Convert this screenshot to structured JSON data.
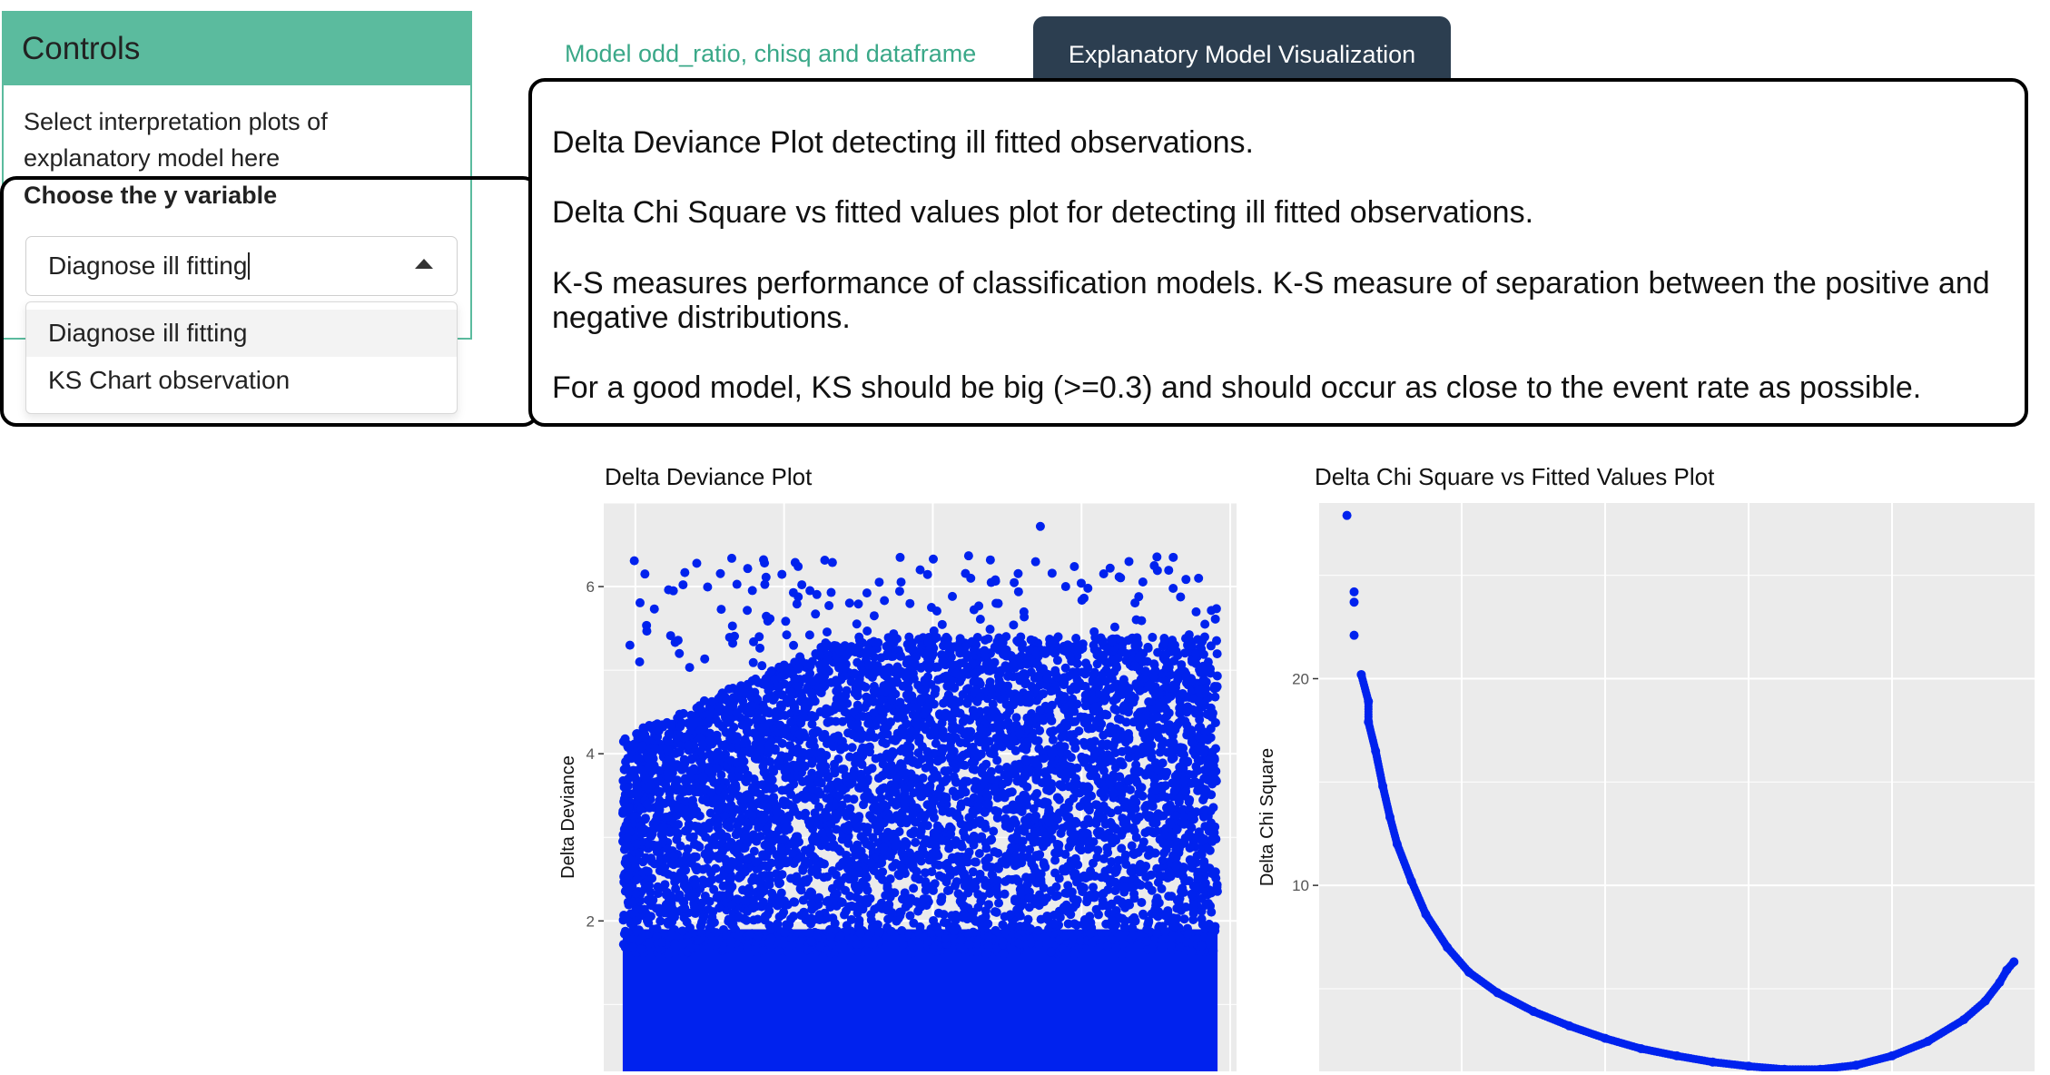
{
  "sidebar": {
    "title": "Controls",
    "description": "Select interpretation plots of explanatory model here",
    "select_label": "Choose the y variable",
    "select_value": "Diagnose ill fitting",
    "options": [
      "Diagnose ill fitting",
      "KS Chart observation"
    ]
  },
  "tabs": [
    {
      "label": "Model odd_ratio, chisq and dataframe",
      "active": false
    },
    {
      "label": "Explanatory Model Visualization",
      "active": true
    }
  ],
  "descriptions": [
    "Delta Deviance Plot detecting ill fitted observations.",
    "Delta Chi Square vs fitted values plot for detecting ill fitted observations.",
    "K-S measures performance of classification models. K-S measure of separation between the positive and negative distributions.",
    "For a good model, KS should be big (>=0.3) and should occur as close to the event rate as possible."
  ],
  "colors": {
    "accent": "#5bbb9e",
    "tab_active": "#2c3e50",
    "tab_inactive_text": "#3aa888",
    "point": "#0022ee",
    "plot_bg": "#ebebeb"
  },
  "chart_data": [
    {
      "type": "scatter",
      "title": "Delta Deviance Plot",
      "xlabel": "",
      "ylabel": "Delta Deviance",
      "ylim": [
        0.2,
        7.0
      ],
      "yticks": [
        2,
        4,
        6
      ],
      "y_tick_labels": [
        "2",
        "4",
        "6"
      ],
      "point_color": "#0022ee",
      "note": "dense band of points from ~0.2 up to ~5.3 across entire x range, sparse points up to ~6.7",
      "sample_points": [
        [
          0.11,
          5.95
        ],
        [
          0.18,
          4.5
        ],
        [
          0.19,
          3.5
        ],
        [
          0.35,
          5.0
        ],
        [
          0.5,
          6.2
        ],
        [
          0.58,
          6.1
        ],
        [
          0.62,
          5.8
        ],
        [
          0.69,
          6.72
        ],
        [
          0.73,
          6.0
        ],
        [
          0.83,
          6.3
        ],
        [
          0.87,
          6.25
        ],
        [
          0.9,
          6.35
        ],
        [
          0.94,
          6.1
        ],
        [
          0.95,
          5.55
        ]
      ]
    },
    {
      "type": "scatter",
      "title": "Delta Chi Square vs Fitted Values Plot",
      "xlabel": "",
      "ylabel": "Delta Chi Square",
      "ylim": [
        1,
        28.5
      ],
      "yticks": [
        10,
        20
      ],
      "y_tick_labels": [
        "10",
        "20"
      ],
      "point_color": "#0022ee",
      "points": [
        [
          0.04,
          27.9
        ],
        [
          0.05,
          24.2
        ],
        [
          0.05,
          23.7
        ],
        [
          0.05,
          22.1
        ],
        [
          0.06,
          20.2
        ],
        [
          0.07,
          18.9
        ],
        [
          0.07,
          17.9
        ],
        [
          0.08,
          16.5
        ],
        [
          0.09,
          14.8
        ],
        [
          0.1,
          13.3
        ],
        [
          0.11,
          12.0
        ],
        [
          0.13,
          10.2
        ],
        [
          0.15,
          8.6
        ],
        [
          0.18,
          7.0
        ],
        [
          0.21,
          5.8
        ],
        [
          0.25,
          4.8
        ],
        [
          0.3,
          3.9
        ],
        [
          0.35,
          3.2
        ],
        [
          0.4,
          2.6
        ],
        [
          0.45,
          2.1
        ],
        [
          0.5,
          1.75
        ],
        [
          0.55,
          1.45
        ],
        [
          0.6,
          1.25
        ],
        [
          0.65,
          1.1
        ],
        [
          0.7,
          1.1
        ],
        [
          0.75,
          1.3
        ],
        [
          0.8,
          1.75
        ],
        [
          0.85,
          2.45
        ],
        [
          0.9,
          3.5
        ],
        [
          0.93,
          4.4
        ],
        [
          0.95,
          5.3
        ],
        [
          0.96,
          5.9
        ],
        [
          0.97,
          6.3
        ]
      ]
    }
  ]
}
